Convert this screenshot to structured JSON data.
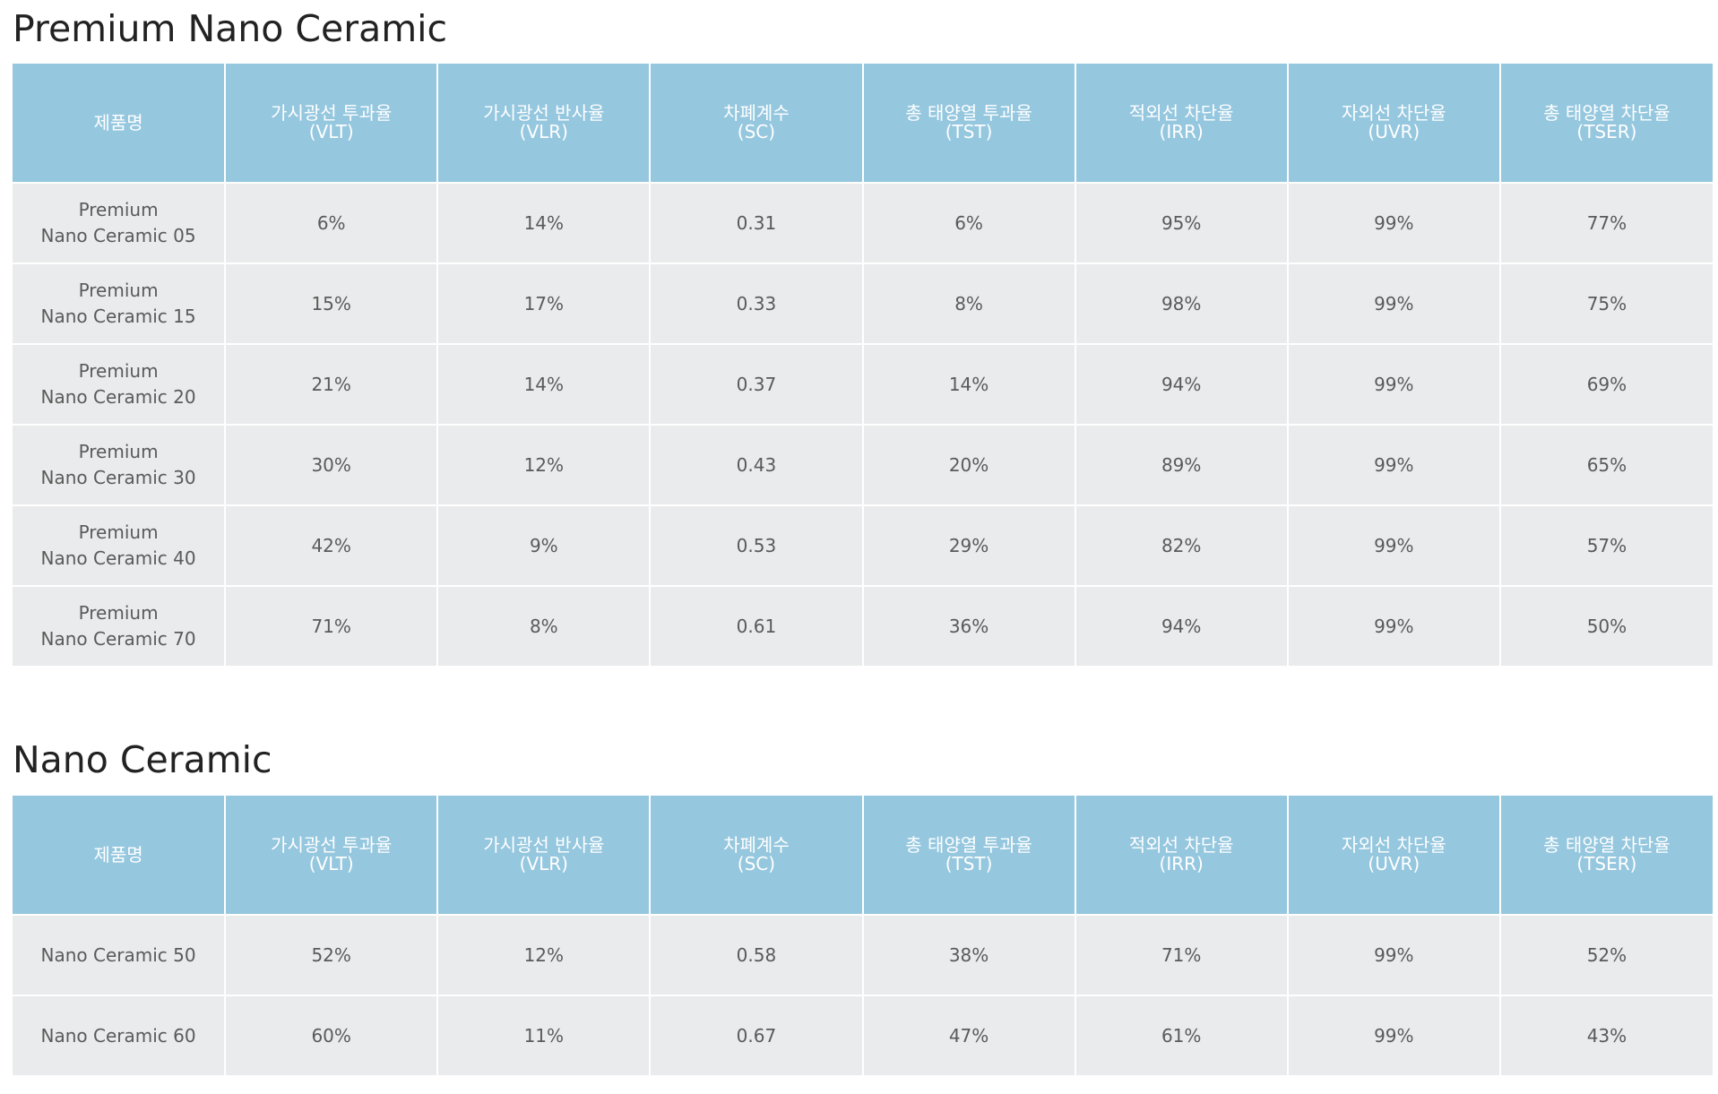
{
  "columns": [
    {
      "label": "제품명",
      "abbr": ""
    },
    {
      "label": "가시광선 투과율",
      "abbr": "(VLT)"
    },
    {
      "label": "가시광선 반사율",
      "abbr": "(VLR)"
    },
    {
      "label": "차폐계수",
      "abbr": "(SC)"
    },
    {
      "label": "총 태양열 투과율",
      "abbr": "(TST)"
    },
    {
      "label": "적외선 차단율",
      "abbr": "(IRR)"
    },
    {
      "label": "자외선 차단율",
      "abbr": "(UVR)"
    },
    {
      "label": "총 태양열 차단율",
      "abbr": "(TSER)"
    }
  ],
  "sections": [
    {
      "title": "Premium Nano Ceramic",
      "rows": [
        {
          "name": [
            "Premium",
            "Nano Ceramic 05"
          ],
          "values": [
            "6%",
            "14%",
            "0.31",
            "6%",
            "95%",
            "99%",
            "77%"
          ]
        },
        {
          "name": [
            "Premium",
            "Nano Ceramic 15"
          ],
          "values": [
            "15%",
            "17%",
            "0.33",
            "8%",
            "98%",
            "99%",
            "75%"
          ]
        },
        {
          "name": [
            "Premium",
            "Nano Ceramic 20"
          ],
          "values": [
            "21%",
            "14%",
            "0.37",
            "14%",
            "94%",
            "99%",
            "69%"
          ]
        },
        {
          "name": [
            "Premium",
            "Nano Ceramic 30"
          ],
          "values": [
            "30%",
            "12%",
            "0.43",
            "20%",
            "89%",
            "99%",
            "65%"
          ]
        },
        {
          "name": [
            "Premium",
            "Nano Ceramic 40"
          ],
          "values": [
            "42%",
            "9%",
            "0.53",
            "29%",
            "82%",
            "99%",
            "57%"
          ]
        },
        {
          "name": [
            "Premium",
            "Nano Ceramic 70"
          ],
          "values": [
            "71%",
            "8%",
            "0.61",
            "36%",
            "94%",
            "99%",
            "50%"
          ]
        }
      ]
    },
    {
      "title": "Nano Ceramic",
      "rows": [
        {
          "name": [
            "Nano Ceramic 50"
          ],
          "values": [
            "52%",
            "12%",
            "0.58",
            "38%",
            "71%",
            "99%",
            "52%"
          ]
        },
        {
          "name": [
            "Nano Ceramic 60"
          ],
          "values": [
            "60%",
            "11%",
            "0.67",
            "47%",
            "61%",
            "99%",
            "43%"
          ]
        }
      ]
    }
  ],
  "colors": {
    "header_bg": "#95c7df",
    "header_text": "#ffffff",
    "cell_bg": "#eaebec",
    "cell_text": "#5a5a5a",
    "title_text": "#222222"
  }
}
